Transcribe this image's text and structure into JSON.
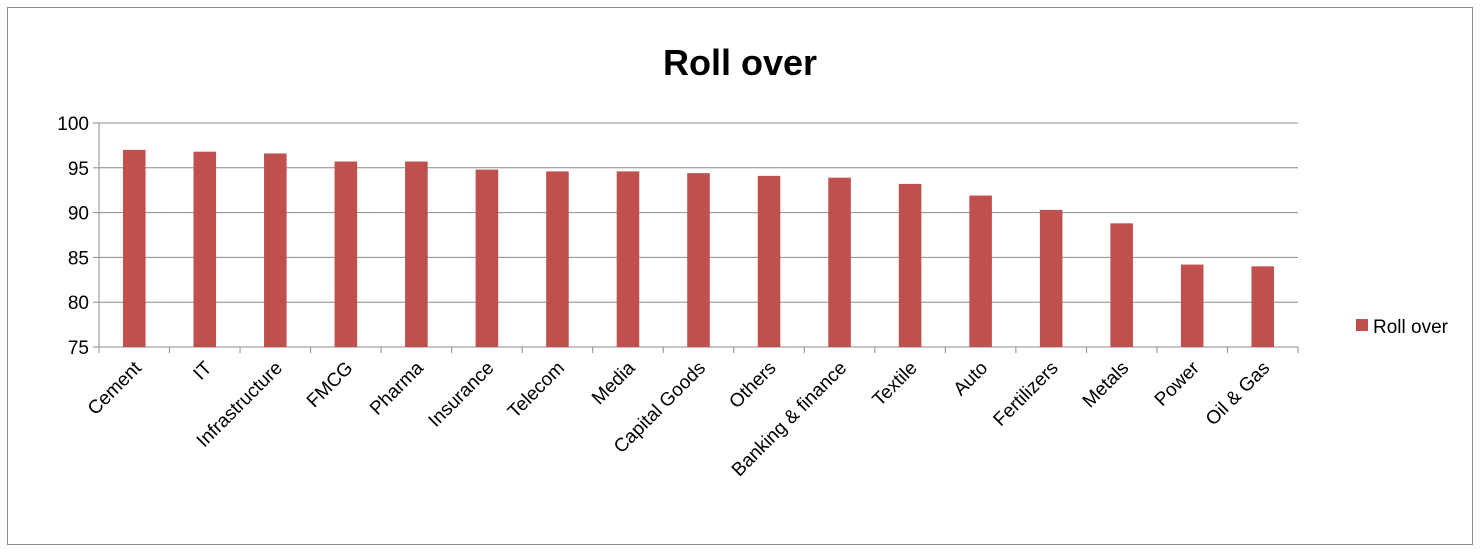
{
  "chart_data": {
    "type": "bar",
    "title": "Roll over",
    "categories": [
      "Cement",
      "IT",
      "Infrastructure",
      "FMCG",
      "Pharma",
      "Insurance",
      "Telecom",
      "Media",
      "Capital Goods",
      "Others",
      "Banking & finance",
      "Textile",
      "Auto",
      "Fertilizers",
      "Metals",
      "Power",
      "Oil & Gas"
    ],
    "series": [
      {
        "name": "Roll over",
        "color": "#c0504d",
        "values": [
          97.0,
          96.8,
          96.6,
          95.7,
          95.7,
          94.8,
          94.6,
          94.6,
          94.4,
          94.1,
          93.9,
          93.2,
          91.9,
          90.3,
          88.8,
          84.2,
          84.0
        ]
      }
    ],
    "yticks": [
      75,
      80,
      85,
      90,
      95,
      100
    ],
    "ylim": [
      75,
      100
    ],
    "xlabel": "",
    "ylabel": "",
    "grid": true,
    "legend_position": "right"
  }
}
